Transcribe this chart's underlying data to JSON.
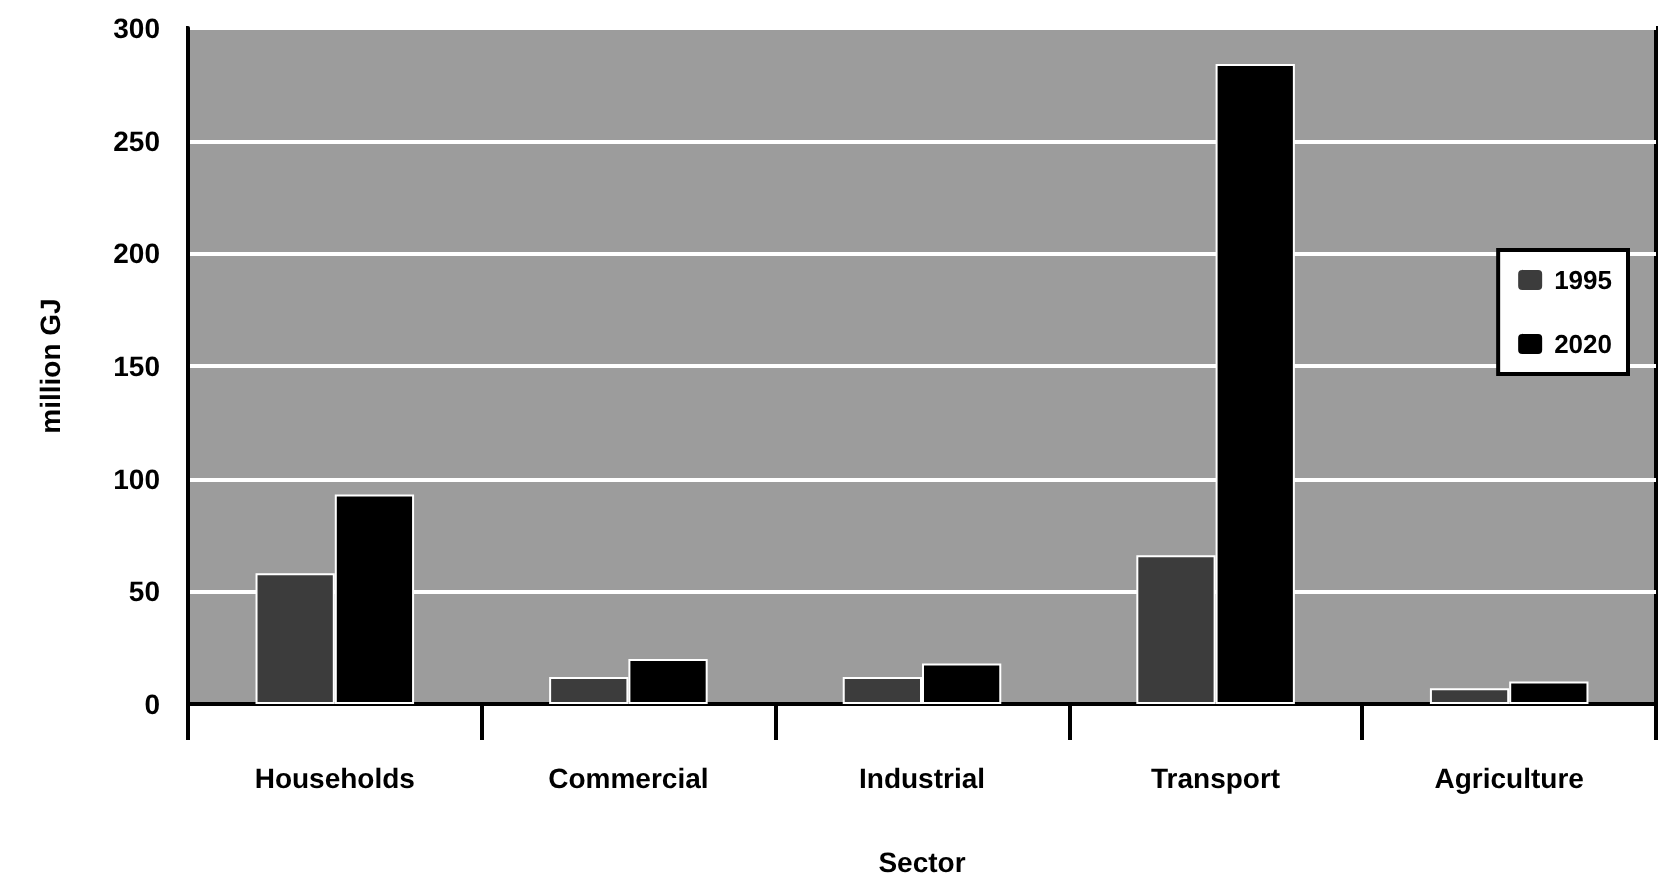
{
  "chart_data": {
    "type": "bar",
    "xlabel": "Sector",
    "ylabel": "million GJ",
    "categories": [
      "Households",
      "Commercial",
      "Industrial",
      "Transport",
      "Agriculture"
    ],
    "series": [
      {
        "name": "1995",
        "color": "#3c3c3c",
        "values": [
          58,
          12,
          12,
          66,
          7
        ]
      },
      {
        "name": "2020",
        "color": "#000000",
        "values": [
          93,
          20,
          18,
          284,
          10
        ]
      }
    ],
    "ylim": [
      0,
      300
    ],
    "yticks": [
      0,
      50,
      100,
      150,
      200,
      250,
      300
    ],
    "grid": "y",
    "legend": "right"
  }
}
